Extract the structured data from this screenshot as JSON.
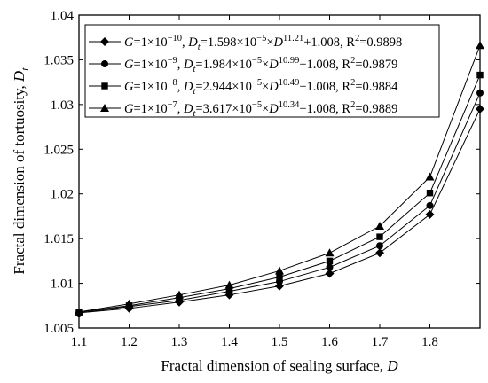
{
  "chart_data": {
    "type": "line",
    "xlabel": "Fractal dimension of sealing surface, ",
    "xlabel_var": "D",
    "ylabel": "Fractal dimension of tortuosity, ",
    "ylabel_var": "D",
    "ylabel_sub": "t",
    "xlim": [
      1.1,
      1.9
    ],
    "ylim": [
      1.005,
      1.04
    ],
    "xticks": [
      1.1,
      1.2,
      1.3,
      1.4,
      1.5,
      1.6,
      1.7,
      1.8
    ],
    "xtick_labels": [
      "1.1",
      "1.2",
      "1.3",
      "1.4",
      "1.5",
      "1.6",
      "1.7",
      "1.8"
    ],
    "yticks": [
      1.005,
      1.01,
      1.015,
      1.02,
      1.025,
      1.03,
      1.035,
      1.04
    ],
    "ytick_labels": [
      "1.005",
      "1.01",
      "1.015",
      "1.02",
      "1.025",
      "1.03",
      "1.035",
      "1.04"
    ],
    "legend_position": "top-left",
    "grid": false,
    "x": [
      1.1,
      1.2,
      1.3,
      1.4,
      1.5,
      1.6,
      1.7,
      1.8,
      1.9
    ],
    "series": [
      {
        "marker": "diamond",
        "legend": {
          "g": "G",
          "gval": "=1×10",
          "gexp": "−10",
          "a": ", ",
          "dt": "D",
          "dtsub": "t",
          "b": "=1.598×10",
          "bexp": "−5",
          "c": "×",
          "d": "D",
          "dexp": "11.21",
          "e": "+1.008, R",
          "rexp": "2",
          "f": "=0.9898"
        },
        "values": [
          1.0067,
          1.0072,
          1.0079,
          1.0087,
          1.0097,
          1.0111,
          1.0134,
          1.0177,
          1.0295
        ]
      },
      {
        "marker": "circle",
        "legend": {
          "g": "G",
          "gval": "=1×10",
          "gexp": "−9",
          "a": ", ",
          "dt": "D",
          "dtsub": "t",
          "b": "=1.984×10",
          "bexp": "−5",
          "c": "×",
          "d": "D",
          "dexp": "10.99",
          "e": "+1.008, R",
          "rexp": "2",
          "f": "=0.9879"
        },
        "values": [
          1.0067,
          1.0074,
          1.0081,
          1.0091,
          1.0102,
          1.0118,
          1.0142,
          1.0187,
          1.0313
        ]
      },
      {
        "marker": "square",
        "legend": {
          "g": "G",
          "gval": "=1×10",
          "gexp": "−8",
          "a": ", ",
          "dt": "D",
          "dtsub": "t",
          "b": "=2.944×10",
          "bexp": "−5",
          "c": "×",
          "d": "D",
          "dexp": "10.49",
          "e": "+1.008, R",
          "rexp": "2",
          "f": "=0.9884"
        },
        "values": [
          1.0068,
          1.0075,
          1.0084,
          1.0094,
          1.0107,
          1.0125,
          1.0152,
          1.0201,
          1.0333
        ]
      },
      {
        "marker": "triangle",
        "legend": {
          "g": "G",
          "gval": "=1×10",
          "gexp": "−7",
          "a": ", ",
          "dt": "D",
          "dtsub": "t",
          "b": "=3.617×10",
          "bexp": "−5",
          "c": "×",
          "d": "D",
          "dexp": "10.34",
          "e": "+1.008, R",
          "rexp": "2",
          "f": "=0.9889"
        },
        "values": [
          1.0068,
          1.0077,
          1.0087,
          1.0098,
          1.0114,
          1.0134,
          1.0164,
          1.0219,
          1.0366
        ]
      }
    ]
  }
}
